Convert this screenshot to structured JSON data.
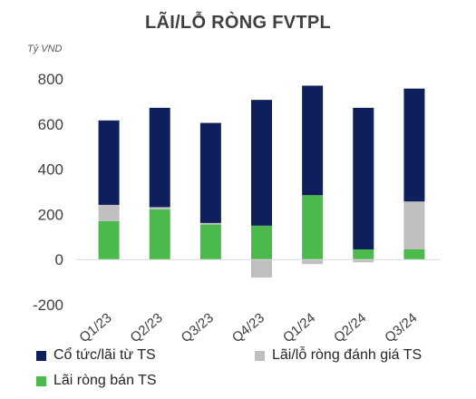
{
  "chart_data": {
    "type": "bar",
    "stacked": true,
    "title": "LÃI/LỖ RÒNG FVTPL",
    "ylabel": "Tỷ VND",
    "xlabel": "",
    "categories": [
      "Q1/23",
      "Q2/23",
      "Q3/23",
      "Q4/23",
      "Q1/24",
      "Q2/24",
      "Q3/24"
    ],
    "ylim": [
      -200,
      800
    ],
    "yticks": [
      -200,
      0,
      200,
      400,
      600,
      800
    ],
    "grid": false,
    "legend_position": "bottom",
    "series": [
      {
        "name": "Lãi ròng bán TS",
        "color": "#4cb94c",
        "values": [
          170,
          222,
          155,
          150,
          285,
          45,
          45
        ]
      },
      {
        "name": "Lãi/lỗ ròng đánh giá TS",
        "color": "#bfbfbf",
        "values": [
          72,
          10,
          7,
          -80,
          -20,
          -12,
          212
        ]
      },
      {
        "name": "Cổ tức/lãi từ TS",
        "color": "#0e1f5b",
        "values": [
          374,
          440,
          443,
          557,
          485,
          627,
          500
        ]
      }
    ],
    "legend_order": [
      "Cổ tức/lãi từ TS",
      "Lãi/lỗ ròng đánh giá TS",
      "Lãi ròng bán TS"
    ]
  }
}
